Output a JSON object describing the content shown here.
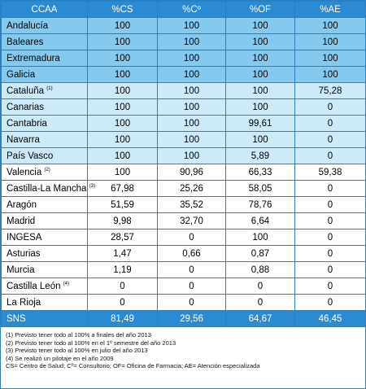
{
  "table": {
    "header": [
      "CCAA",
      "%CS",
      "%Cº",
      "%OF",
      "%AE"
    ],
    "rows": [
      {
        "name": "Andalucía",
        "cells": [
          "100",
          "100",
          "100",
          "100"
        ]
      },
      {
        "name": "Baleares",
        "cells": [
          "100",
          "100",
          "100",
          "100"
        ]
      },
      {
        "name": "Extremadura",
        "cells": [
          "100",
          "100",
          "100",
          "100"
        ]
      },
      {
        "name": "Galicia",
        "cells": [
          "100",
          "100",
          "100",
          "100"
        ]
      },
      {
        "name": "Cataluña",
        "note": "(1)",
        "cells": [
          "100",
          "100",
          "100",
          "75,28"
        ]
      },
      {
        "name": "Canarias",
        "cells": [
          "100",
          "100",
          "100",
          "0"
        ]
      },
      {
        "name": "Cantabria",
        "cells": [
          "100",
          "100",
          "99,61",
          "0"
        ]
      },
      {
        "name": "Navarra",
        "cells": [
          "100",
          "100",
          "100",
          "0"
        ]
      },
      {
        "name": "País Vasco",
        "cells": [
          "100",
          "100",
          "5,89",
          "0"
        ]
      },
      {
        "name": "Valencia",
        "note": "(2)",
        "cells": [
          "100",
          "90,96",
          "66,33",
          "59,38"
        ]
      },
      {
        "name": "Castilla-La Mancha",
        "note": "(3)",
        "cells": [
          "67,98",
          "25,26",
          "58,05",
          "0"
        ]
      },
      {
        "name": "Aragón",
        "cells": [
          "51,59",
          "35,52",
          "78,76",
          "0"
        ]
      },
      {
        "name": "Madrid",
        "cells": [
          "9,98",
          "32,70",
          "6,64",
          "0"
        ]
      },
      {
        "name": "INGESA",
        "cells": [
          "28,57",
          "0",
          "100",
          "0"
        ]
      },
      {
        "name": "Asturias",
        "cells": [
          "1,47",
          "0,66",
          "0,87",
          "0"
        ]
      },
      {
        "name": "Murcia",
        "cells": [
          "1,19",
          "0",
          "0,88",
          "0"
        ]
      },
      {
        "name": "Castilla León",
        "note": "(4)",
        "cells": [
          "0",
          "0",
          "0",
          "0"
        ]
      },
      {
        "name": "La Rioja",
        "cells": [
          "0",
          "0",
          "0",
          "0"
        ]
      }
    ],
    "total": {
      "name": "SNS",
      "cells": [
        "81,49",
        "29,56",
        "64,67",
        "46,45"
      ]
    }
  },
  "footnotes": [
    "(1) Previsto tener todo al 100% a finales del año 2013",
    "(2) Previsto tener todo al 100% en el 1º semestre del año 2013",
    "(3) Previsto tener todo al 100% en julio del año 2013",
    "(4) Se realizó un pilotaje en el año 2009",
    "CS= Centro de Salud; Cº= Consultorio; OF= Oficina de Farmacia; AE= Atención especializada"
  ]
}
